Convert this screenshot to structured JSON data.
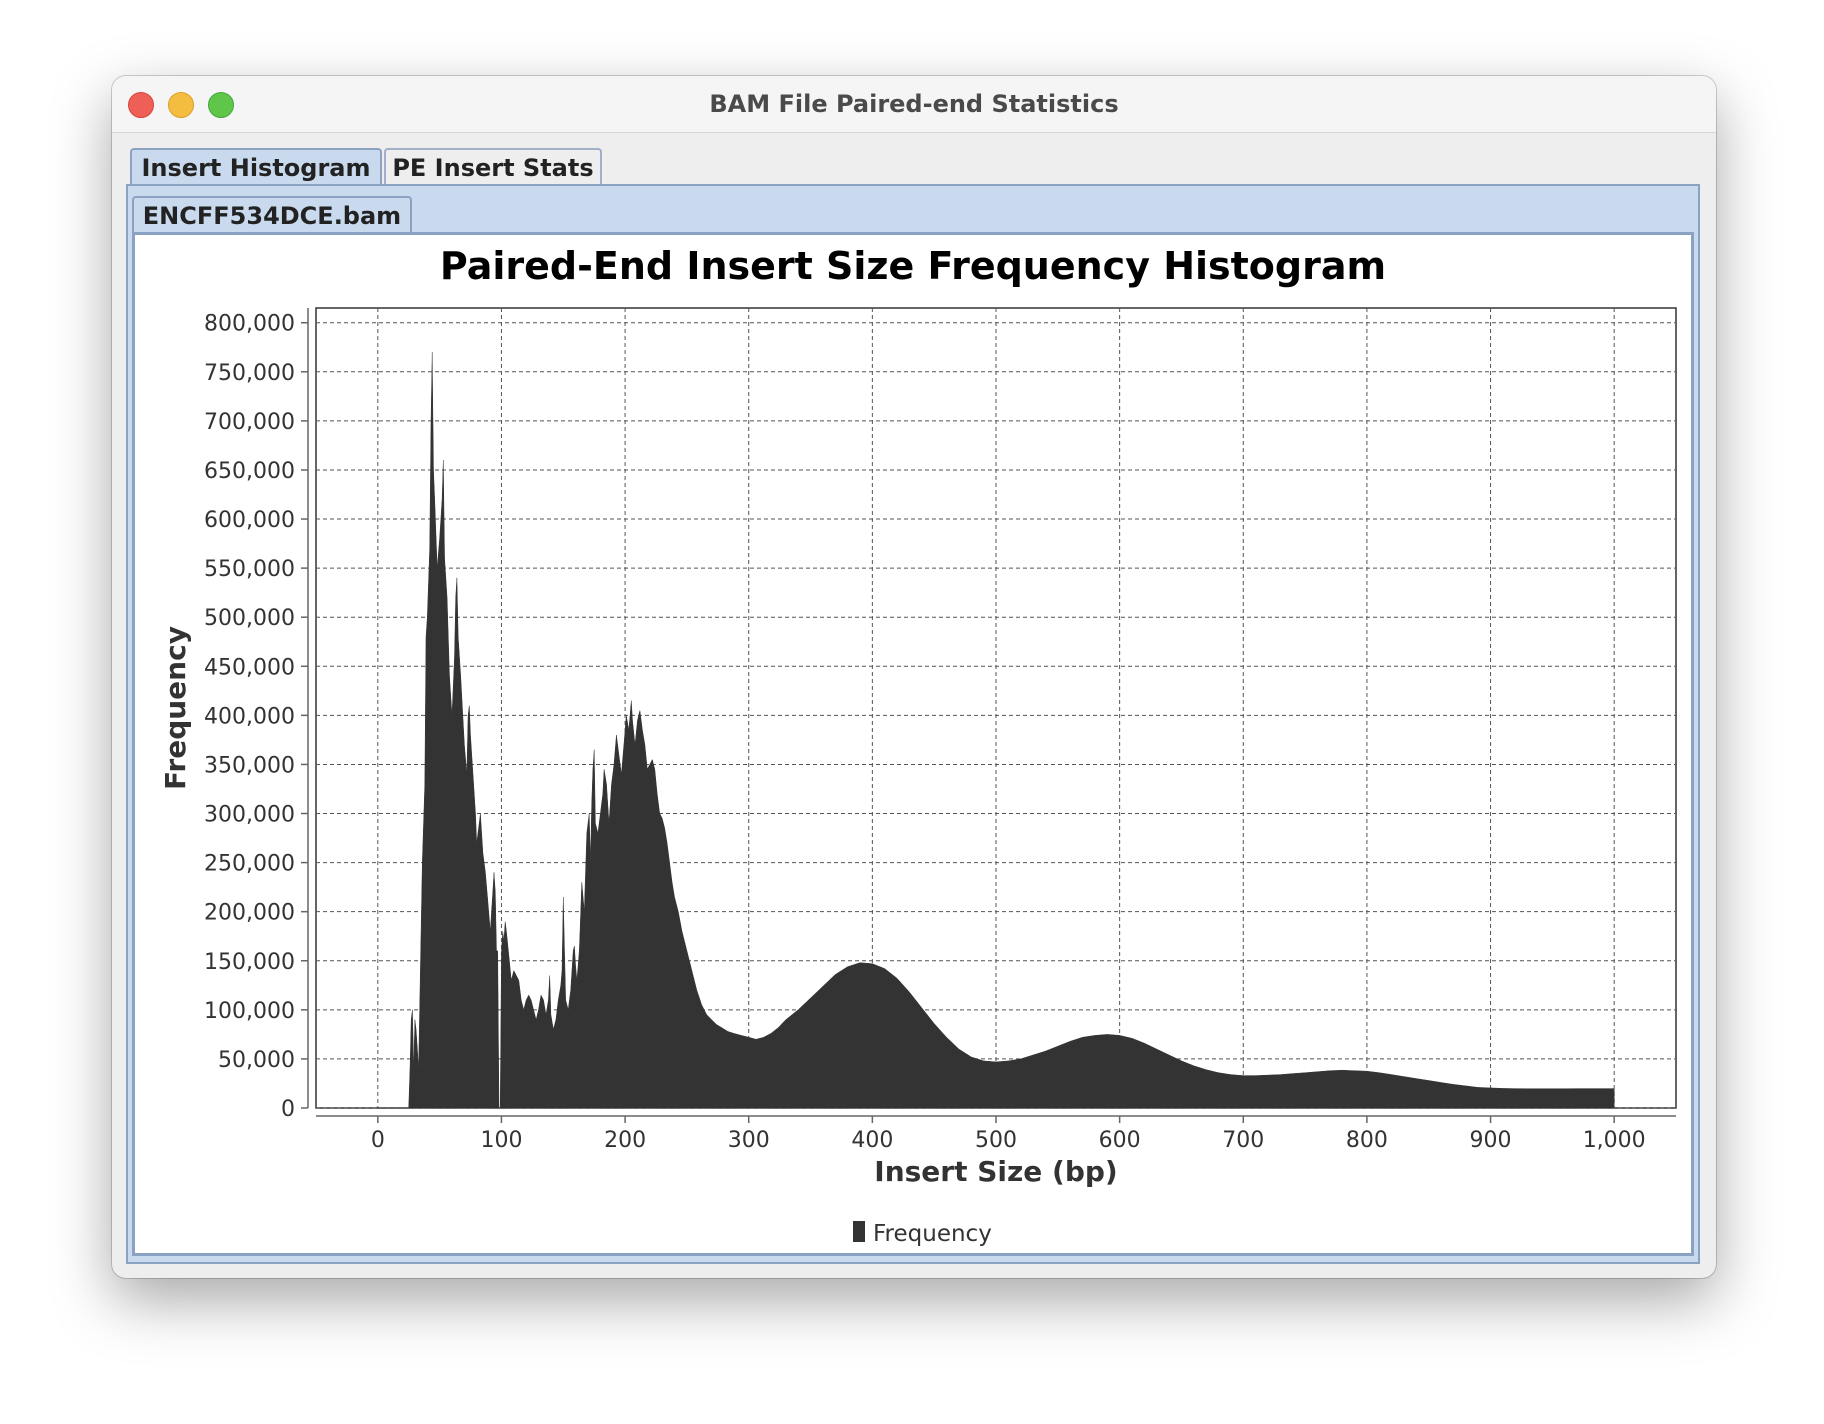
{
  "window": {
    "title": "BAM File Paired-end Statistics"
  },
  "tabs": {
    "outer": [
      "Insert Histogram",
      "PE Insert Stats"
    ],
    "inner": [
      "ENCFF534DCE.bam"
    ]
  },
  "colors": {
    "bars": "#333333",
    "tab_active": "#c9daef",
    "tab_border": "#8ba2c2"
  },
  "chart_data": {
    "type": "area",
    "title": "Paired-End Insert Size Frequency Histogram",
    "xlabel": "Insert Size (bp)",
    "ylabel": "Frequency",
    "xlim": [
      -50,
      1050
    ],
    "ylim": [
      0,
      815000
    ],
    "x_ticks": [
      "0",
      "100",
      "200",
      "300",
      "400",
      "500",
      "600",
      "700",
      "800",
      "900",
      "1,000"
    ],
    "y_ticks": [
      "0",
      "50,000",
      "100,000",
      "150,000",
      "200,000",
      "250,000",
      "300,000",
      "350,000",
      "400,000",
      "450,000",
      "500,000",
      "550,000",
      "600,000",
      "650,000",
      "700,000",
      "750,000",
      "800,000"
    ],
    "legend": [
      "Frequency"
    ],
    "legend_position": "bottom",
    "grid": true,
    "series": [
      {
        "name": "Frequency",
        "points": [
          [
            0,
            0
          ],
          [
            25,
            0
          ],
          [
            26,
            40000
          ],
          [
            27,
            90000
          ],
          [
            28,
            100000
          ],
          [
            29,
            40000
          ],
          [
            30,
            90000
          ],
          [
            31,
            80000
          ],
          [
            33,
            40000
          ],
          [
            36,
            250000
          ],
          [
            38,
            330000
          ],
          [
            39,
            480000
          ],
          [
            40,
            500000
          ],
          [
            42,
            570000
          ],
          [
            43,
            700000
          ],
          [
            44,
            770000
          ],
          [
            45,
            650000
          ],
          [
            46,
            620000
          ],
          [
            48,
            550000
          ],
          [
            50,
            580000
          ],
          [
            52,
            620000
          ],
          [
            53,
            660000
          ],
          [
            54,
            560000
          ],
          [
            56,
            520000
          ],
          [
            58,
            440000
          ],
          [
            60,
            400000
          ],
          [
            62,
            460000
          ],
          [
            63,
            520000
          ],
          [
            64,
            540000
          ],
          [
            65,
            480000
          ],
          [
            67,
            440000
          ],
          [
            70,
            370000
          ],
          [
            72,
            340000
          ],
          [
            73,
            400000
          ],
          [
            74,
            410000
          ],
          [
            75,
            380000
          ],
          [
            77,
            340000
          ],
          [
            79,
            300000
          ],
          [
            80,
            270000
          ],
          [
            82,
            290000
          ],
          [
            83,
            300000
          ],
          [
            85,
            260000
          ],
          [
            87,
            240000
          ],
          [
            89,
            210000
          ],
          [
            91,
            180000
          ],
          [
            93,
            220000
          ],
          [
            94,
            240000
          ],
          [
            95,
            220000
          ],
          [
            96,
            160000
          ],
          [
            97,
            160000
          ],
          [
            98,
            0
          ],
          [
            99,
            0
          ],
          [
            100,
            160000
          ],
          [
            101,
            180000
          ],
          [
            102,
            170000
          ],
          [
            103,
            190000
          ],
          [
            104,
            180000
          ],
          [
            106,
            155000
          ],
          [
            108,
            130000
          ],
          [
            110,
            140000
          ],
          [
            112,
            135000
          ],
          [
            114,
            130000
          ],
          [
            116,
            110000
          ],
          [
            118,
            100000
          ],
          [
            120,
            110000
          ],
          [
            122,
            115000
          ],
          [
            124,
            110000
          ],
          [
            126,
            100000
          ],
          [
            128,
            90000
          ],
          [
            130,
            100000
          ],
          [
            132,
            115000
          ],
          [
            134,
            110000
          ],
          [
            136,
            95000
          ],
          [
            138,
            110000
          ],
          [
            139,
            135000
          ],
          [
            140,
            95000
          ],
          [
            142,
            80000
          ],
          [
            144,
            90000
          ],
          [
            145,
            100000
          ],
          [
            146,
            110000
          ],
          [
            148,
            125000
          ],
          [
            149,
            140000
          ],
          [
            150,
            215000
          ],
          [
            151,
            160000
          ],
          [
            152,
            110000
          ],
          [
            154,
            100000
          ],
          [
            156,
            120000
          ],
          [
            158,
            160000
          ],
          [
            159,
            165000
          ],
          [
            160,
            145000
          ],
          [
            161,
            130000
          ],
          [
            163,
            160000
          ],
          [
            165,
            230000
          ],
          [
            167,
            200000
          ],
          [
            169,
            280000
          ],
          [
            171,
            300000
          ],
          [
            172,
            250000
          ],
          [
            173,
            310000
          ],
          [
            174,
            345000
          ],
          [
            175,
            365000
          ],
          [
            176,
            290000
          ],
          [
            178,
            280000
          ],
          [
            180,
            300000
          ],
          [
            182,
            320000
          ],
          [
            183,
            345000
          ],
          [
            185,
            330000
          ],
          [
            187,
            290000
          ],
          [
            189,
            330000
          ],
          [
            191,
            350000
          ],
          [
            193,
            380000
          ],
          [
            195,
            360000
          ],
          [
            197,
            340000
          ],
          [
            199,
            370000
          ],
          [
            201,
            400000
          ],
          [
            203,
            385000
          ],
          [
            205,
            415000
          ],
          [
            206,
            395000
          ],
          [
            208,
            370000
          ],
          [
            210,
            395000
          ],
          [
            212,
            405000
          ],
          [
            214,
            385000
          ],
          [
            216,
            370000
          ],
          [
            218,
            345000
          ],
          [
            220,
            350000
          ],
          [
            222,
            355000
          ],
          [
            224,
            345000
          ],
          [
            226,
            320000
          ],
          [
            228,
            300000
          ],
          [
            230,
            295000
          ],
          [
            232,
            285000
          ],
          [
            234,
            270000
          ],
          [
            236,
            250000
          ],
          [
            238,
            230000
          ],
          [
            240,
            215000
          ],
          [
            243,
            200000
          ],
          [
            246,
            180000
          ],
          [
            249,
            165000
          ],
          [
            252,
            150000
          ],
          [
            255,
            135000
          ],
          [
            258,
            120000
          ],
          [
            262,
            105000
          ],
          [
            266,
            95000
          ],
          [
            270,
            90000
          ],
          [
            274,
            85000
          ],
          [
            278,
            82000
          ],
          [
            283,
            78000
          ],
          [
            288,
            76000
          ],
          [
            294,
            74000
          ],
          [
            300,
            72000
          ],
          [
            306,
            70000
          ],
          [
            312,
            72000
          ],
          [
            318,
            76000
          ],
          [
            324,
            82000
          ],
          [
            330,
            90000
          ],
          [
            340,
            100000
          ],
          [
            350,
            112000
          ],
          [
            360,
            124000
          ],
          [
            370,
            136000
          ],
          [
            380,
            144000
          ],
          [
            390,
            148000
          ],
          [
            400,
            147000
          ],
          [
            410,
            142000
          ],
          [
            420,
            132000
          ],
          [
            430,
            118000
          ],
          [
            440,
            102000
          ],
          [
            450,
            86000
          ],
          [
            460,
            72000
          ],
          [
            470,
            60000
          ],
          [
            480,
            52000
          ],
          [
            490,
            48000
          ],
          [
            500,
            47000
          ],
          [
            510,
            48000
          ],
          [
            520,
            50000
          ],
          [
            530,
            54000
          ],
          [
            540,
            58000
          ],
          [
            550,
            63000
          ],
          [
            560,
            68000
          ],
          [
            570,
            72000
          ],
          [
            580,
            74000
          ],
          [
            590,
            75000
          ],
          [
            600,
            74000
          ],
          [
            610,
            71000
          ],
          [
            620,
            66000
          ],
          [
            630,
            60000
          ],
          [
            640,
            54000
          ],
          [
            650,
            48000
          ],
          [
            660,
            43000
          ],
          [
            670,
            39000
          ],
          [
            680,
            36000
          ],
          [
            690,
            34000
          ],
          [
            700,
            33000
          ],
          [
            710,
            33000
          ],
          [
            720,
            33500
          ],
          [
            730,
            34000
          ],
          [
            740,
            35000
          ],
          [
            750,
            36000
          ],
          [
            760,
            37000
          ],
          [
            770,
            38000
          ],
          [
            780,
            38500
          ],
          [
            790,
            38000
          ],
          [
            800,
            37500
          ],
          [
            810,
            36000
          ],
          [
            820,
            34000
          ],
          [
            830,
            32000
          ],
          [
            840,
            30000
          ],
          [
            850,
            28000
          ],
          [
            860,
            26000
          ],
          [
            870,
            24000
          ],
          [
            880,
            22500
          ],
          [
            890,
            21000
          ],
          [
            900,
            20500
          ],
          [
            910,
            20000
          ],
          [
            920,
            19800
          ],
          [
            930,
            19700
          ],
          [
            940,
            19700
          ],
          [
            950,
            19700
          ],
          [
            960,
            19700
          ],
          [
            970,
            19800
          ],
          [
            980,
            19800
          ],
          [
            990,
            19800
          ],
          [
            1000,
            19800
          ]
        ]
      }
    ]
  }
}
